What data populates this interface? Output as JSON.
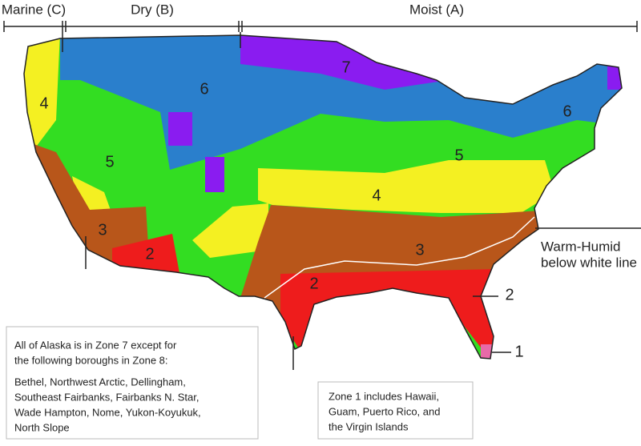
{
  "moisture_regimes": [
    "Marine (C)",
    "Dry (B)",
    "Moist (A)"
  ],
  "zone_labels": [
    "4",
    "5",
    "6",
    "7",
    "6",
    "5",
    "4",
    "3",
    "2",
    "3",
    "2",
    "2",
    "1"
  ],
  "warm_humid_note": [
    "Warm-Humid",
    "below white line"
  ],
  "alaska_note": [
    "All of Alaska is in Zone 7 except for",
    "the following boroughs in Zone 8:",
    "Bethel, Northwest Arctic, Dellingham,",
    "Southeast Fairbanks, Fairbanks N. Star,",
    "Wade Hampton, Nome, Yukon-Koyukuk,",
    "North Slope"
  ],
  "zone1_note": [
    "Zone 1 includes Hawaii,",
    "Guam, Puerto Rico, and",
    "the Virgin Islands"
  ]
}
